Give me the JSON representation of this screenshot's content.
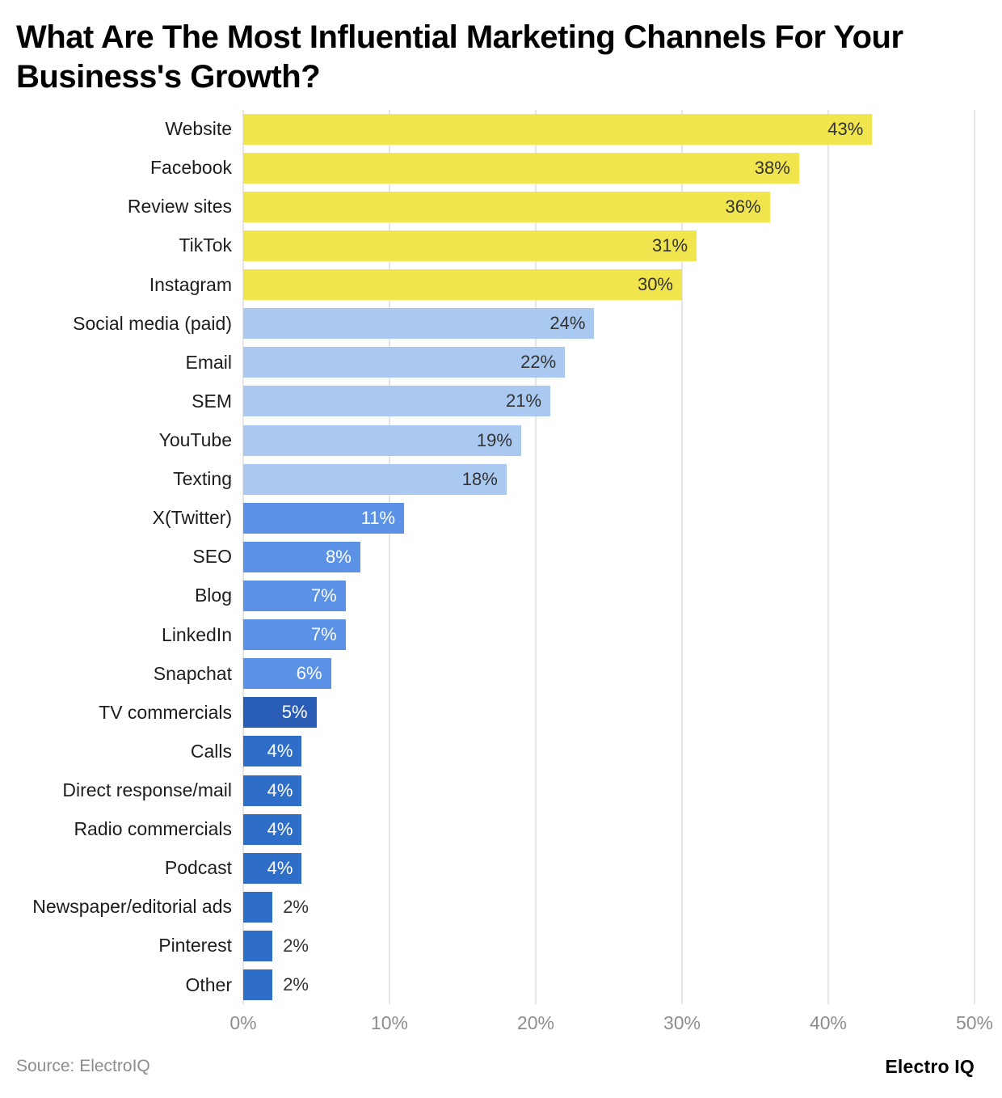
{
  "footer": {
    "source": "Source: ElectroIQ",
    "brand": "Electro IQ"
  },
  "chart_data": {
    "type": "bar",
    "orientation": "horizontal",
    "title": "What Are The Most Influential Marketing Channels For Your Business's Growth?",
    "xlabel": "",
    "ylabel": "",
    "xlim": [
      0,
      50
    ],
    "grid": true,
    "legend": "none",
    "x_ticks": [
      {
        "value": 0,
        "label": "0%"
      },
      {
        "value": 10,
        "label": "10%"
      },
      {
        "value": 20,
        "label": "20%"
      },
      {
        "value": 30,
        "label": "30%"
      },
      {
        "value": 40,
        "label": "40%"
      },
      {
        "value": 50,
        "label": "50%"
      }
    ],
    "colors": {
      "yellow": "#F0E54D",
      "light_blue": "#A9C9F1",
      "medium_blue": "#5B92E5",
      "navy_blue": "#2A5DB5",
      "dark_blue": "#2E6EC8",
      "label_dark": "#333333",
      "label_light": "#FFFFFF"
    },
    "points": [
      {
        "label": "Website",
        "value": 43,
        "display": "43%",
        "color": "#F0E54D",
        "text_color": "#333333",
        "label_inside": true
      },
      {
        "label": "Facebook",
        "value": 38,
        "display": "38%",
        "color": "#F0E54D",
        "text_color": "#333333",
        "label_inside": true
      },
      {
        "label": "Review sites",
        "value": 36,
        "display": "36%",
        "color": "#F0E54D",
        "text_color": "#333333",
        "label_inside": true
      },
      {
        "label": "TikTok",
        "value": 31,
        "display": "31%",
        "color": "#F0E54D",
        "text_color": "#333333",
        "label_inside": true
      },
      {
        "label": "Instagram",
        "value": 30,
        "display": "30%",
        "color": "#F0E54D",
        "text_color": "#333333",
        "label_inside": true
      },
      {
        "label": "Social media (paid)",
        "value": 24,
        "display": "24%",
        "color": "#A9C9F1",
        "text_color": "#333333",
        "label_inside": true
      },
      {
        "label": "Email",
        "value": 22,
        "display": "22%",
        "color": "#A9C9F1",
        "text_color": "#333333",
        "label_inside": true
      },
      {
        "label": "SEM",
        "value": 21,
        "display": "21%",
        "color": "#A9C9F1",
        "text_color": "#333333",
        "label_inside": true
      },
      {
        "label": "YouTube",
        "value": 19,
        "display": "19%",
        "color": "#A9C9F1",
        "text_color": "#333333",
        "label_inside": true
      },
      {
        "label": "Texting",
        "value": 18,
        "display": "18%",
        "color": "#A9C9F1",
        "text_color": "#333333",
        "label_inside": true
      },
      {
        "label": "X(Twitter)",
        "value": 11,
        "display": "11%",
        "color": "#5B92E5",
        "text_color": "#FFFFFF",
        "label_inside": true
      },
      {
        "label": "SEO",
        "value": 8,
        "display": "8%",
        "color": "#5B92E5",
        "text_color": "#FFFFFF",
        "label_inside": true
      },
      {
        "label": "Blog",
        "value": 7,
        "display": "7%",
        "color": "#5B92E5",
        "text_color": "#FFFFFF",
        "label_inside": true
      },
      {
        "label": "LinkedIn",
        "value": 7,
        "display": "7%",
        "color": "#5B92E5",
        "text_color": "#FFFFFF",
        "label_inside": true
      },
      {
        "label": "Snapchat",
        "value": 6,
        "display": "6%",
        "color": "#5B92E5",
        "text_color": "#FFFFFF",
        "label_inside": true
      },
      {
        "label": "TV commercials",
        "value": 5,
        "display": "5%",
        "color": "#2A5DB5",
        "text_color": "#FFFFFF",
        "label_inside": true
      },
      {
        "label": "Calls",
        "value": 4,
        "display": "4%",
        "color": "#2E6EC8",
        "text_color": "#FFFFFF",
        "label_inside": true
      },
      {
        "label": "Direct response/mail",
        "value": 4,
        "display": "4%",
        "color": "#2E6EC8",
        "text_color": "#FFFFFF",
        "label_inside": true
      },
      {
        "label": "Radio commercials",
        "value": 4,
        "display": "4%",
        "color": "#2E6EC8",
        "text_color": "#FFFFFF",
        "label_inside": true
      },
      {
        "label": "Podcast",
        "value": 4,
        "display": "4%",
        "color": "#2E6EC8",
        "text_color": "#FFFFFF",
        "label_inside": true
      },
      {
        "label": "Newspaper/editorial ads",
        "value": 2,
        "display": "2%",
        "color": "#2E6EC8",
        "text_color": "#333333",
        "label_inside": false
      },
      {
        "label": "Pinterest",
        "value": 2,
        "display": "2%",
        "color": "#2E6EC8",
        "text_color": "#333333",
        "label_inside": false
      },
      {
        "label": "Other",
        "value": 2,
        "display": "2%",
        "color": "#2E6EC8",
        "text_color": "#333333",
        "label_inside": false
      }
    ]
  }
}
